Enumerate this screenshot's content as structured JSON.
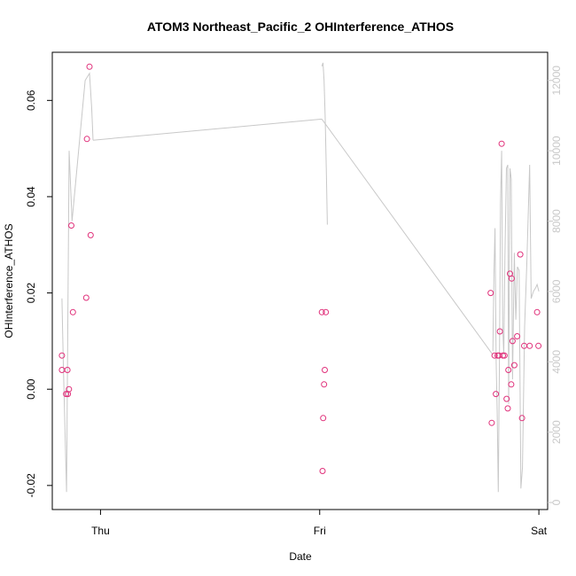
{
  "chart_data": {
    "type": "scatter",
    "title": "ATOM3 Northeast_Pacific_2 OHInterference_ATHOS",
    "xlabel": "Date",
    "ylabel": "OHInterference_ATHOS",
    "x_ticks": [
      {
        "x": 1.0,
        "label": "Thu"
      },
      {
        "x": 2.0,
        "label": "Fri"
      },
      {
        "x": 3.0,
        "label": "Sat"
      }
    ],
    "xlim": [
      0.78,
      3.04
    ],
    "ylim": [
      -0.025,
      0.07
    ],
    "y_ticks": [
      -0.02,
      0.0,
      0.02,
      0.04,
      0.06
    ],
    "y_tick_labels": [
      "-0.02",
      "0.00",
      "0.02",
      "0.04",
      "0.06"
    ],
    "y2lim": [
      -200,
      12800
    ],
    "y2_ticks": [
      0,
      2000,
      4000,
      6000,
      8000,
      10000,
      12000
    ],
    "y2_tick_labels": [
      "0",
      "2000",
      "4000",
      "6000",
      "8000",
      "10000",
      "12000"
    ],
    "colors": {
      "points": "#e0307a",
      "line": "#c8c8c8",
      "axis": "#000000",
      "right_axis": "#c8c8c8"
    },
    "series": [
      {
        "kind": "points",
        "axis": "left",
        "x": [
          0.824,
          0.824,
          0.843,
          0.849,
          0.851,
          0.856,
          0.867,
          0.874,
          0.935,
          0.938,
          0.95,
          0.955,
          2.01,
          2.013,
          2.016,
          2.02,
          2.023,
          2.028,
          2.78,
          2.785,
          2.798,
          2.804,
          2.812,
          2.818,
          2.822,
          2.83,
          2.836,
          2.843,
          2.853,
          2.858,
          2.861,
          2.868,
          2.874,
          2.876,
          2.88,
          2.888,
          2.901,
          2.915,
          2.923,
          2.933,
          2.958,
          2.992,
          2.998
        ],
        "y": [
          0.007,
          0.004,
          -0.001,
          0.004,
          -0.001,
          0.0,
          0.034,
          0.016,
          0.019,
          0.052,
          0.067,
          0.032,
          0.016,
          -0.017,
          -0.006,
          0.001,
          0.004,
          0.016,
          0.02,
          -0.007,
          0.007,
          -0.001,
          0.007,
          0.007,
          0.012,
          0.051,
          0.007,
          0.007,
          -0.002,
          -0.004,
          0.004,
          0.024,
          0.001,
          0.023,
          0.01,
          0.005,
          0.011,
          0.028,
          -0.006,
          0.009,
          0.009,
          0.016,
          0.009
        ]
      },
      {
        "kind": "line",
        "axis": "right",
        "segments": [
          {
            "x": [
              0.824,
              0.83,
              0.845,
              0.857,
              0.87,
              0.9,
              0.93,
              0.95,
              0.96,
              0.966
            ],
            "y": [
              5800,
              4000,
              300,
              10000,
              8000,
              10000,
              12000,
              12200,
              11200,
              10300
            ]
          },
          {
            "x": [
              0.966,
              2.01
            ],
            "y": [
              10300,
              10900
            ]
          },
          {
            "x": [
              2.01,
              2.015,
              2.02,
              2.025,
              2.03,
              2.035
            ],
            "y": [
              12400,
              12500,
              12000,
              11000,
              9500,
              7900
            ]
          },
          {
            "x": [
              2.01,
              2.79
            ],
            "y": [
              10900,
              4200
            ]
          },
          {
            "x": [
              2.79,
              2.795,
              2.8,
              2.805,
              2.81,
              2.815,
              2.82,
              2.825,
              2.83,
              2.835,
              2.84,
              2.845,
              2.852,
              2.858,
              2.862,
              2.868,
              2.874,
              2.88,
              2.888,
              2.895,
              2.902,
              2.91,
              2.918,
              2.925,
              2.935,
              2.945,
              2.958,
              2.965,
              2.975,
              2.985,
              2.992,
              3.0
            ],
            "y": [
              4300,
              6500,
              7800,
              4000,
              2500,
              300,
              4000,
              8500,
              10000,
              5000,
              4200,
              7000,
              9500,
              9600,
              2800,
              9500,
              9200,
              3500,
              7100,
              5200,
              6700,
              6600,
              400,
              1000,
              5000,
              6800,
              9600,
              5800,
              6000,
              6100,
              6200,
              6000
            ]
          }
        ]
      }
    ]
  }
}
